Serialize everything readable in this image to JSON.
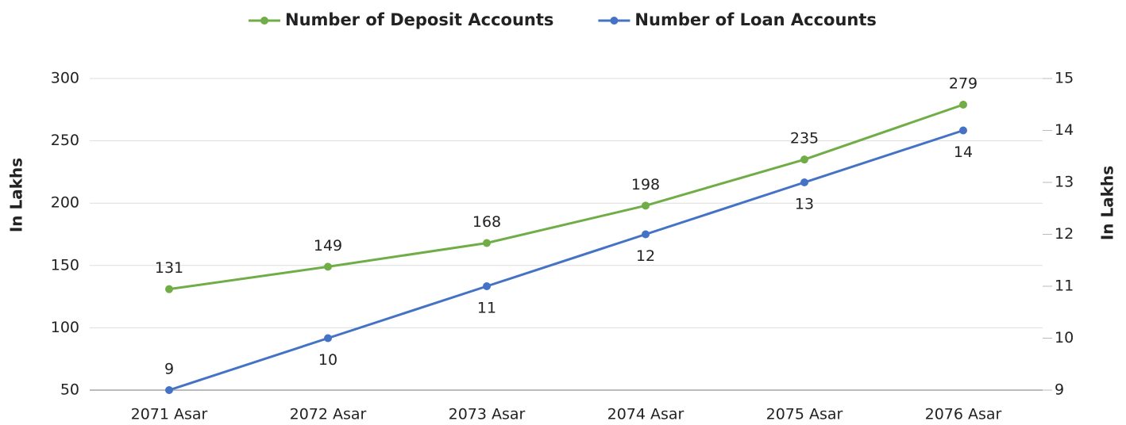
{
  "chart_data": {
    "type": "line",
    "categories": [
      "2071 Asar",
      "2072 Asar",
      "2073 Asar",
      "2074 Asar",
      "2075 Asar",
      "2076 Asar"
    ],
    "series": [
      {
        "name": "Number of Deposit Accounts",
        "color": "#70ad47",
        "values": [
          131,
          149,
          168,
          198,
          235,
          279
        ]
      },
      {
        "name": "Number of Loan Accounts",
        "color": "#4472c4",
        "axis": "y2",
        "values": [
          9,
          10,
          11,
          12,
          13,
          14
        ]
      }
    ],
    "ylabel": "In Lakhs",
    "y2label": "In Lakhs",
    "ylim": [
      50,
      300
    ],
    "yticks": [
      50,
      100,
      150,
      200,
      250,
      300
    ],
    "y2lim": [
      9,
      15
    ],
    "y2ticks": [
      9,
      10,
      11,
      12,
      13,
      14,
      15
    ],
    "grid": true,
    "legend": "top"
  }
}
